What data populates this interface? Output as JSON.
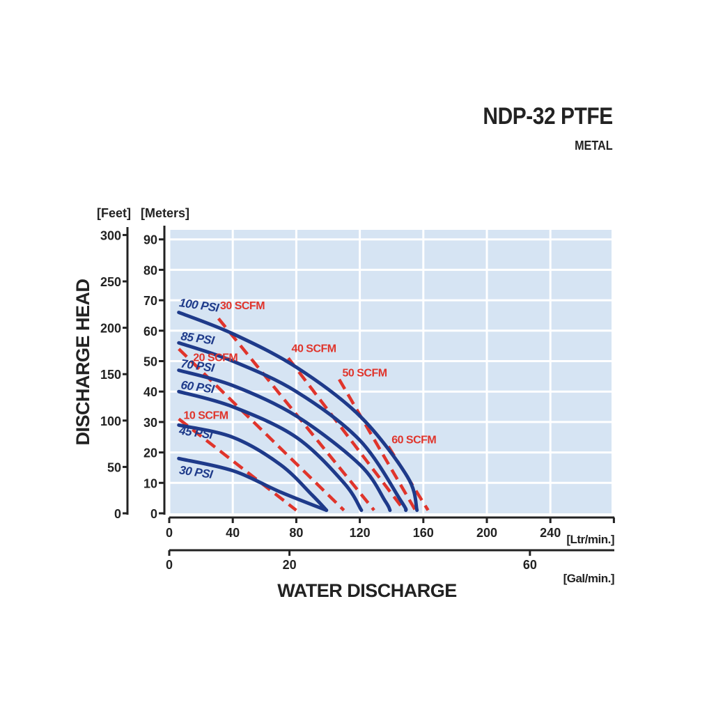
{
  "title": "NDP-32 PTFE",
  "subtitle": "METAL",
  "colors": {
    "plot_bg": "#d6e4f3",
    "grid": "#ffffff",
    "psi": "#1e3a8a",
    "scfm": "#e0342b",
    "axis": "#222222"
  },
  "chart_data": {
    "type": "line",
    "x_label": "WATER DISCHARGE",
    "y_label": "DISCHARGE HEAD",
    "x_unit_primary": "[Ltr/min.]",
    "x_unit_secondary": "[Gal/min.]",
    "y_unit_feet": "[Feet]",
    "y_unit_meters": "[Meters]",
    "x_ticks_ltr": [
      0,
      40,
      80,
      120,
      160,
      200,
      240
    ],
    "x_ticks_gal": [
      0,
      20,
      60
    ],
    "y_ticks_meters": [
      0,
      10,
      20,
      30,
      40,
      50,
      60,
      70,
      80,
      90
    ],
    "y_ticks_feet": [
      0,
      50,
      100,
      150,
      200,
      250,
      300
    ],
    "xlim_ltr": [
      0,
      280
    ],
    "ylim_meters": [
      0,
      93
    ],
    "grid": true,
    "psi_series": [
      {
        "name": "100 PSI",
        "points": [
          [
            6,
            66
          ],
          [
            40,
            59
          ],
          [
            80,
            48
          ],
          [
            120,
            32
          ],
          [
            150,
            12
          ],
          [
            156,
            1
          ]
        ]
      },
      {
        "name": "85 PSI",
        "points": [
          [
            6,
            56
          ],
          [
            40,
            50
          ],
          [
            80,
            40
          ],
          [
            120,
            24
          ],
          [
            146,
            4
          ],
          [
            149,
            1
          ]
        ]
      },
      {
        "name": "70 PSI",
        "points": [
          [
            6,
            47
          ],
          [
            40,
            42
          ],
          [
            80,
            32
          ],
          [
            120,
            16
          ],
          [
            136,
            4
          ],
          [
            139,
            1
          ]
        ]
      },
      {
        "name": "60 PSI",
        "points": [
          [
            6,
            40
          ],
          [
            40,
            35
          ],
          [
            80,
            25
          ],
          [
            110,
            10
          ],
          [
            121,
            1
          ]
        ]
      },
      {
        "name": "45 PSI",
        "points": [
          [
            6,
            29
          ],
          [
            40,
            25
          ],
          [
            70,
            16
          ],
          [
            90,
            6
          ],
          [
            99,
            1
          ]
        ]
      },
      {
        "name": "30 PSI",
        "points": [
          [
            6,
            18
          ],
          [
            40,
            14
          ],
          [
            70,
            7
          ],
          [
            99,
            1
          ]
        ]
      }
    ],
    "scfm_series": [
      {
        "name": "10 SCFM",
        "points": [
          [
            6,
            31
          ],
          [
            80,
            1
          ]
        ]
      },
      {
        "name": "20 SCFM",
        "points": [
          [
            6,
            54
          ],
          [
            110,
            1
          ]
        ]
      },
      {
        "name": "30 SCFM",
        "points": [
          [
            31,
            64
          ],
          [
            129,
            1
          ]
        ]
      },
      {
        "name": "40 SCFM",
        "points": [
          [
            75,
            51
          ],
          [
            148,
            1
          ]
        ]
      },
      {
        "name": "50 SCFM",
        "points": [
          [
            107,
            44
          ],
          [
            155,
            1
          ]
        ]
      },
      {
        "name": "60 SCFM",
        "points": [
          [
            138,
            22
          ],
          [
            163,
            1
          ]
        ]
      }
    ],
    "series_labels": [
      {
        "text": "100 PSI",
        "series": "psi",
        "at": [
          6,
          68
        ]
      },
      {
        "text": "85 PSI",
        "series": "psi",
        "at": [
          7,
          57
        ]
      },
      {
        "text": "70 PSI",
        "series": "psi",
        "at": [
          7,
          48
        ]
      },
      {
        "text": "60 PSI",
        "series": "psi",
        "at": [
          7,
          41
        ]
      },
      {
        "text": "45 PSI",
        "series": "psi",
        "at": [
          6,
          26
        ]
      },
      {
        "text": "30 PSI",
        "series": "psi",
        "at": [
          6,
          13
        ]
      },
      {
        "text": "30 SCFM",
        "series": "scfm",
        "at": [
          32,
          67
        ]
      },
      {
        "text": "40 SCFM",
        "series": "scfm",
        "at": [
          77,
          53
        ]
      },
      {
        "text": "50 SCFM",
        "series": "scfm",
        "at": [
          109,
          45
        ]
      },
      {
        "text": "20 SCFM",
        "series": "scfm",
        "at": [
          15,
          50
        ]
      },
      {
        "text": "10 SCFM",
        "series": "scfm",
        "at": [
          9,
          31
        ]
      },
      {
        "text": "60 SCFM",
        "series": "scfm",
        "at": [
          140,
          23
        ]
      }
    ]
  }
}
